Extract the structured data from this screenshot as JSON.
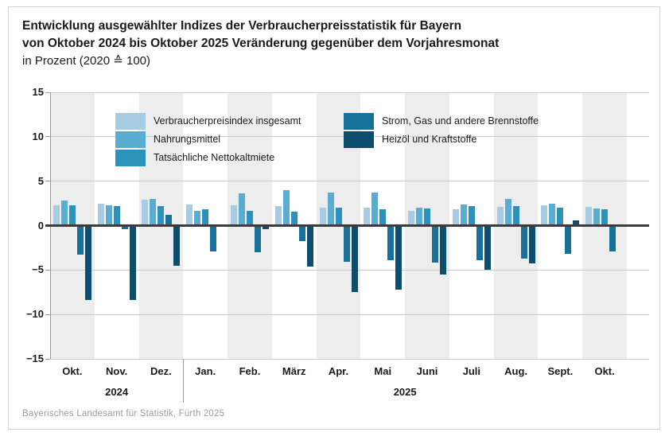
{
  "title": {
    "line1": "Entwicklung ausgewählter Indizes der Verbraucherpreisstatistik für Bayern",
    "line2": "von Oktober 2024 bis Oktober 2025 Veränderung gegenüber dem Vorjahresmonat",
    "line3": "in Prozent (2020 ≙ 100)"
  },
  "footer": "Bayerisches Landesamt für Statistik, Fürth 2025",
  "colors": {
    "card_border": "#d2d2d2",
    "text": "#1a1a1a",
    "footer_text": "#9c9c9c"
  },
  "chart_data": {
    "type": "bar",
    "title": "Entwicklung ausgewählter Indizes der Verbraucherpreisstatistik für Bayern von Oktober 2024 bis Oktober 2025, Veränderung gegenüber dem Vorjahresmonat in Prozent (2020 ≙ 100)",
    "categories": [
      "Okt.",
      "Nov.",
      "Dez.",
      "Jan.",
      "Feb.",
      "März",
      "Apr.",
      "Mai",
      "Juni",
      "Juli",
      "Aug.",
      "Sept.",
      "Okt."
    ],
    "year_sections": [
      {
        "label": "2024",
        "months": 3
      },
      {
        "label": "2025",
        "months": 10
      }
    ],
    "series": [
      {
        "name": "Verbraucherpreisindex insgesamt",
        "color": "#a6cbe2",
        "values": [
          2.3,
          2.5,
          2.9,
          2.4,
          2.3,
          2.2,
          2.0,
          2.0,
          1.7,
          1.8,
          2.1,
          2.3,
          2.1
        ]
      },
      {
        "name": "Nahrungsmittel",
        "color": "#58add0",
        "values": [
          2.8,
          2.3,
          3.0,
          1.7,
          3.6,
          4.0,
          3.7,
          3.7,
          2.0,
          2.4,
          3.0,
          2.5,
          1.9
        ]
      },
      {
        "name": "Tatsächliche Nettokaltmiete",
        "color": "#2b93bb",
        "values": [
          2.3,
          2.2,
          2.2,
          1.8,
          1.7,
          1.6,
          2.0,
          1.8,
          1.9,
          2.2,
          2.2,
          2.0,
          1.8
        ]
      },
      {
        "name": "Strom, Gas und andere Brennstoffe",
        "color": "#17709a",
        "values": [
          -3.2,
          -0.3,
          1.2,
          -2.8,
          -2.9,
          -1.7,
          -4.0,
          -3.8,
          -4.1,
          -3.8,
          -3.6,
          -3.1,
          -2.8
        ]
      },
      {
        "name": "Heizöl und Kraftstoffe",
        "color": "#0d4d6d",
        "values": [
          -8.3,
          -8.3,
          -4.4,
          0.0,
          -0.3,
          -4.5,
          -7.4,
          -7.1,
          -5.4,
          -4.9,
          -4.2,
          0.6,
          0.0
        ]
      }
    ],
    "ylabel": "in Prozent",
    "ylim": [
      -15,
      15
    ],
    "ytick_values": [
      15,
      10,
      5,
      0,
      -5,
      -10,
      -15
    ],
    "ytick_labels": [
      "15",
      "10",
      "5",
      "0",
      "−5",
      "−10",
      "−15"
    ],
    "grid": true,
    "legend_position": "top-inside",
    "legend_columns": [
      [
        0,
        1,
        2
      ],
      [
        3,
        4
      ]
    ],
    "band_colors": [
      "#ededed",
      "#ffffff"
    ],
    "zero_line_color": "#3c3c3c",
    "grid_color": "#c9c9c9",
    "axis_color": "#9a9a9a"
  }
}
